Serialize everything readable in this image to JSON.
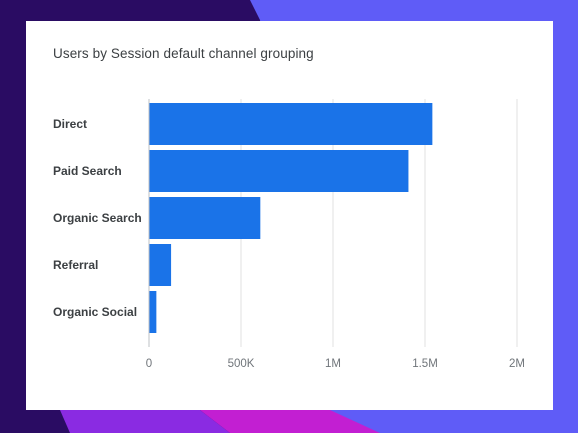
{
  "colors": {
    "bar": "#1a73e8",
    "grid": "#e0e0e0",
    "bg_dark": "#2a0c63",
    "bg_purple": "#5f5cf7",
    "bg_magenta": "#c21fd2"
  },
  "chart_data": {
    "type": "bar",
    "orientation": "horizontal",
    "title": "Users by Session default channel grouping",
    "categories": [
      "Direct",
      "Paid Search",
      "Organic Search",
      "Referral",
      "Organic Social"
    ],
    "values": [
      1540000,
      1410000,
      605000,
      120000,
      40000
    ],
    "xlim": [
      0,
      2000000
    ],
    "x_ticks": [
      0,
      500000,
      1000000,
      1500000,
      2000000
    ],
    "x_tick_labels": [
      "0",
      "500K",
      "1M",
      "1.5M",
      "2M"
    ],
    "grid": true,
    "legend": "none"
  }
}
